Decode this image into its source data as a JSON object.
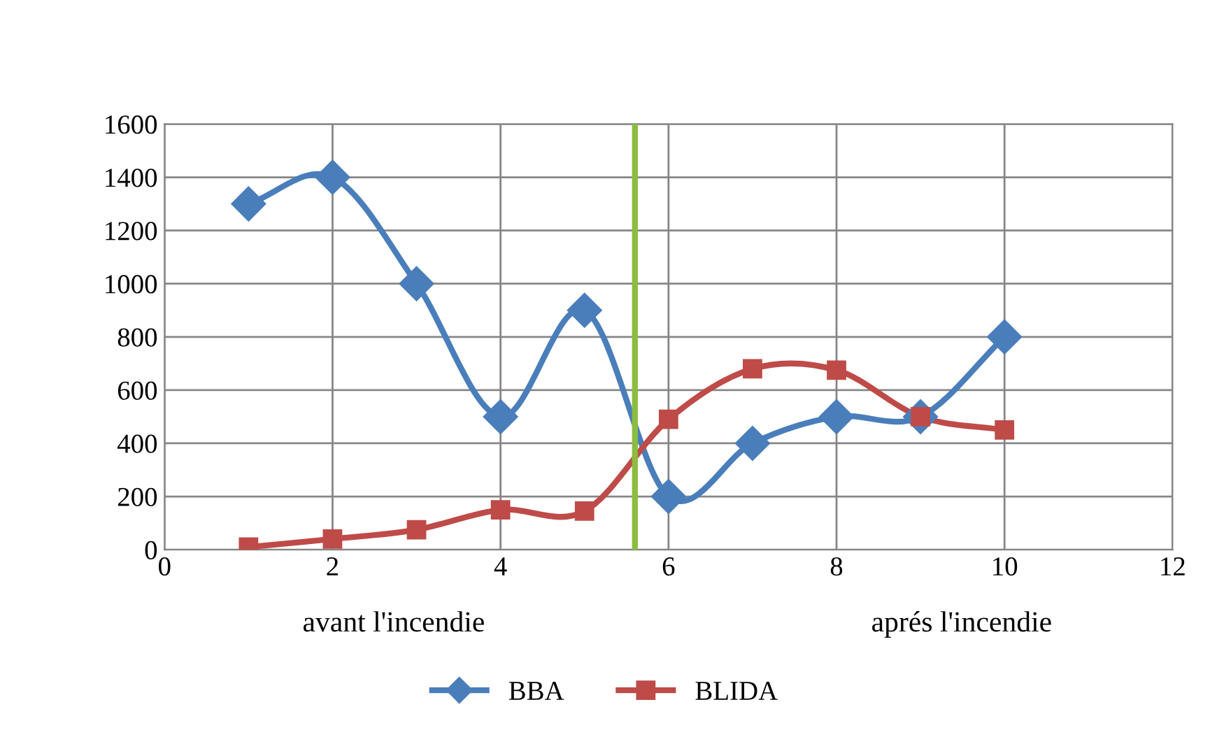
{
  "chart_data": {
    "type": "line",
    "x": [
      1,
      2,
      3,
      4,
      5,
      6,
      7,
      8,
      9,
      10
    ],
    "series": [
      {
        "name": "BBA",
        "color": "#4a7ebb",
        "marker": "diamond",
        "values": [
          1300,
          1400,
          1000,
          500,
          900,
          200,
          400,
          500,
          500,
          800
        ]
      },
      {
        "name": "BLIDA",
        "color": "#be4b48",
        "marker": "square",
        "values": [
          10,
          40,
          75,
          150,
          145,
          490,
          680,
          675,
          500,
          450
        ]
      }
    ],
    "xlim": [
      0,
      12
    ],
    "xticks": [
      0,
      2,
      4,
      6,
      8,
      10,
      12
    ],
    "ylim": [
      0,
      1600
    ],
    "yticks": [
      0,
      200,
      400,
      600,
      800,
      1000,
      1200,
      1400,
      1600
    ],
    "grid": true,
    "legend": "bottom",
    "line_style": "solid",
    "ref_lines": [
      {
        "axis": "x",
        "value": 5.6,
        "color": "#8cbd3f"
      }
    ],
    "annotations": [
      "avant l'incendie",
      "aprés l'incendie"
    ]
  }
}
